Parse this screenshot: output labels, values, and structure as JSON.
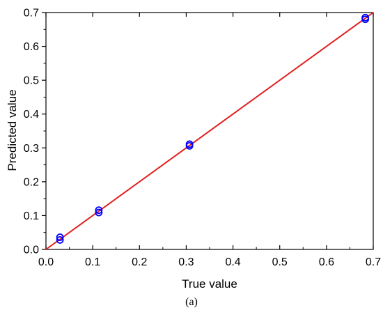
{
  "chart_data": {
    "type": "scatter",
    "xlabel": "True value",
    "ylabel": "Predicted value",
    "xlim": [
      0.0,
      0.7
    ],
    "ylim": [
      0.0,
      0.7
    ],
    "xticks": [
      "0.0",
      "0.1",
      "0.2",
      "0.3",
      "0.4",
      "0.5",
      "0.6",
      "0.7"
    ],
    "yticks": [
      "0.0",
      "0.1",
      "0.2",
      "0.3",
      "0.4",
      "0.5",
      "0.6",
      "0.7"
    ],
    "grid": false,
    "series": [
      {
        "marker": "open-circle",
        "color": "#0000ff",
        "x": [
          0.03,
          0.03,
          0.113,
          0.113,
          0.307,
          0.307,
          0.683,
          0.683
        ],
        "y": [
          0.036,
          0.028,
          0.116,
          0.109,
          0.311,
          0.306,
          0.685,
          0.68
        ]
      }
    ],
    "reference_line": {
      "x": [
        0.0,
        0.7
      ],
      "y": [
        0.0,
        0.7
      ],
      "color": "#e02020"
    }
  },
  "caption": "(a)"
}
